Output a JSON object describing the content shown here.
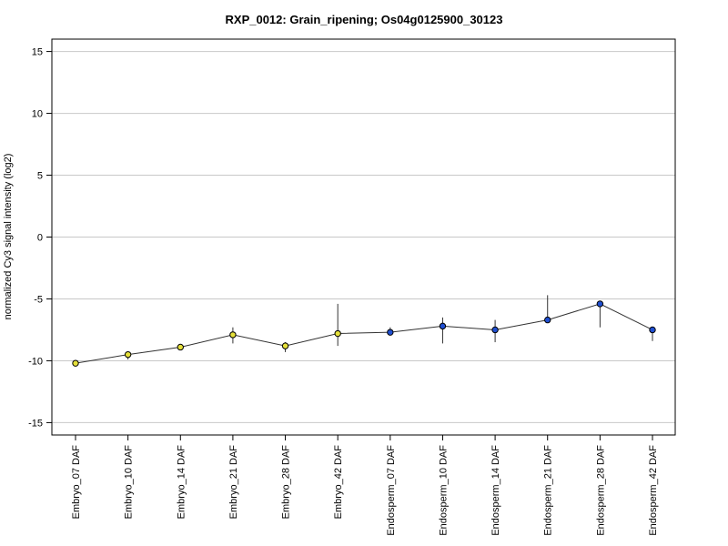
{
  "chart_data": {
    "type": "line",
    "title": "RXP_0012: Grain_ripening; Os04g0125900_30123",
    "xlabel": "",
    "ylabel": "normalized Cy3 signal intensity (log2)",
    "ylim": [
      -16,
      16
    ],
    "yticks": [
      -15,
      -10,
      -5,
      0,
      5,
      10,
      15
    ],
    "grid": true,
    "categories": [
      "Embryo_07 DAF",
      "Embryo_10 DAF",
      "Embryo_14 DAF",
      "Embryo_21 DAF",
      "Embryo_28 DAF",
      "Embryo_42 DAF",
      "Endosperm_07 DAF",
      "Endosperm_10 DAF",
      "Endosperm_14 DAF",
      "Endosperm_21 DAF",
      "Endosperm_28 DAF",
      "Endosperm_42 DAF"
    ],
    "values": [
      -10.2,
      -9.5,
      -8.9,
      -7.9,
      -8.8,
      -7.8,
      -7.7,
      -7.2,
      -7.5,
      -6.7,
      -5.4,
      -7.5
    ],
    "error_low": [
      -10.3,
      -9.9,
      -9.1,
      -8.6,
      -9.3,
      -8.8,
      -7.9,
      -8.6,
      -8.5,
      -6.7,
      -7.3,
      -8.4
    ],
    "error_high": [
      -10.1,
      -9.3,
      -8.7,
      -7.3,
      -8.5,
      -5.4,
      -7.3,
      -6.5,
      -6.7,
      -4.7,
      -5.3,
      -7.3
    ],
    "point_colors": [
      "#e5e03a",
      "#e5e03a",
      "#e5e03a",
      "#e5e03a",
      "#e5e03a",
      "#e5e03a",
      "#1f4fd1",
      "#1f4fd1",
      "#1f4fd1",
      "#1f4fd1",
      "#1f4fd1",
      "#1f4fd1"
    ],
    "colors": {
      "embryo": "#e5e03a",
      "endosperm": "#1f4fd1",
      "line": "#333333",
      "grid": "#c8c8c8"
    }
  }
}
